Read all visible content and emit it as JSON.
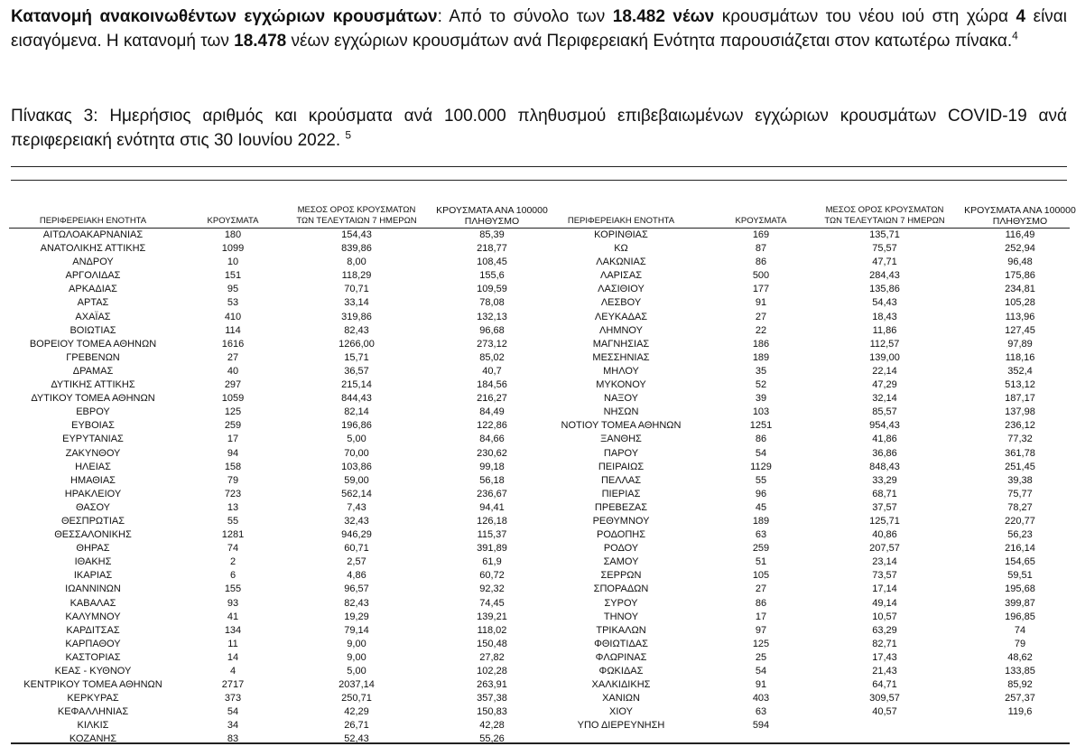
{
  "intro": {
    "segments": [
      {
        "text": "Κατανομή ανακοινωθέντων εγχώριων κρουσμάτων",
        "bold": true
      },
      {
        "text": ": Από το σύνολο των ",
        "bold": false
      },
      {
        "text": "18.482 νέων",
        "bold": true
      },
      {
        "text": " κρουσμάτων του νέου ιού στη χώρα ",
        "bold": false
      },
      {
        "text": "4",
        "bold": true
      },
      {
        "text": " είναι εισαγόμενα.  Η κατανομή των ",
        "bold": false
      },
      {
        "text": "18.478",
        "bold": true
      },
      {
        "text": " νέων εγχώριων κρουσμάτων ανά Περιφερειακή Ενότητα παρουσιάζεται στον κατωτέρω πίνακα.",
        "bold": false
      }
    ],
    "footnote": "4"
  },
  "caption": {
    "text": "Πίνακας 3: Ημερήσιος αριθμός και κρούσματα ανά 100.000 πληθυσμού επιβεβαιωμένων εγχώριων κρουσμάτων COVID-19 ανά περιφερειακή ενότητα στις 30 Ιουνίου 2022. ",
    "footnote": "5"
  },
  "table": {
    "headers": [
      "ΠΕΡΙΦΕΡΕΙΑΚΗ ΕΝΟΤΗΤΑ",
      "ΚΡΟΥΣΜΑΤΑ",
      "ΜΕΣΟΣ ΟΡΟΣ ΚΡΟΥΣΜΑΤΩΝ ΤΩΝ ΤΕΛΕΥΤΑΙΩΝ 7 ΗΜΕΡΩΝ",
      "ΚΡΟΥΣΜΑΤΑ ΑΝΑ 100000 ΠΛΗΘΥΣΜΟ"
    ],
    "headers_split": [
      [
        "ΠΕΡΙΦΕΡΕΙΑΚΗ ΕΝΟΤΗΤΑ"
      ],
      [
        "ΚΡΟΥΣΜΑΤΑ"
      ],
      [
        "ΜΕΣΟΣ ΟΡΟΣ ΚΡΟΥΣΜΑΤΩΝ",
        "ΤΩΝ ΤΕΛΕΥΤΑΙΩΝ 7 ΗΜΕΡΩΝ"
      ],
      [
        "ΚΡΟΥΣΜΑΤΑ ΑΝΑ 100000",
        "ΠΛΗΘΥΣΜΟ"
      ]
    ],
    "left": [
      [
        "ΑΙΤΩΛΟΑΚΑΡΝΑΝΙΑΣ",
        "180",
        "154,43",
        "85,39"
      ],
      [
        "ΑΝΑΤΟΛΙΚΗΣ ΑΤΤΙΚΗΣ",
        "1099",
        "839,86",
        "218,77"
      ],
      [
        "ΑΝΔΡΟΥ",
        "10",
        "8,00",
        "108,45"
      ],
      [
        "ΑΡΓΟΛΙΔΑΣ",
        "151",
        "118,29",
        "155,6"
      ],
      [
        "ΑΡΚΑΔΙΑΣ",
        "95",
        "70,71",
        "109,59"
      ],
      [
        "ΑΡΤΑΣ",
        "53",
        "33,14",
        "78,08"
      ],
      [
        "ΑΧΑΪΑΣ",
        "410",
        "319,86",
        "132,13"
      ],
      [
        "ΒΟΙΩΤΙΑΣ",
        "114",
        "82,43",
        "96,68"
      ],
      [
        "ΒΟΡΕΙΟΥ ΤΟΜΕΑ ΑΘΗΝΩΝ",
        "1616",
        "1266,00",
        "273,12"
      ],
      [
        "ΓΡΕΒΕΝΩΝ",
        "27",
        "15,71",
        "85,02"
      ],
      [
        "ΔΡΑΜΑΣ",
        "40",
        "36,57",
        "40,7"
      ],
      [
        "ΔΥΤΙΚΗΣ ΑΤΤΙΚΗΣ",
        "297",
        "215,14",
        "184,56"
      ],
      [
        "ΔΥΤΙΚΟΥ ΤΟΜΕΑ ΑΘΗΝΩΝ",
        "1059",
        "844,43",
        "216,27"
      ],
      [
        "ΕΒΡΟΥ",
        "125",
        "82,14",
        "84,49"
      ],
      [
        "ΕΥΒΟΙΑΣ",
        "259",
        "196,86",
        "122,86"
      ],
      [
        "ΕΥΡΥΤΑΝΙΑΣ",
        "17",
        "5,00",
        "84,66"
      ],
      [
        "ΖΑΚΥΝΘΟΥ",
        "94",
        "70,00",
        "230,62"
      ],
      [
        "ΗΛΕΙΑΣ",
        "158",
        "103,86",
        "99,18"
      ],
      [
        "ΗΜΑΘΙΑΣ",
        "79",
        "59,00",
        "56,18"
      ],
      [
        "ΗΡΑΚΛΕΙΟΥ",
        "723",
        "562,14",
        "236,67"
      ],
      [
        "ΘΑΣΟΥ",
        "13",
        "7,43",
        "94,41"
      ],
      [
        "ΘΕΣΠΡΩΤΙΑΣ",
        "55",
        "32,43",
        "126,18"
      ],
      [
        "ΘΕΣΣΑΛΟΝΙΚΗΣ",
        "1281",
        "946,29",
        "115,37"
      ],
      [
        "ΘΗΡΑΣ",
        "74",
        "60,71",
        "391,89"
      ],
      [
        "ΙΘΑΚΗΣ",
        "2",
        "2,57",
        "61,9"
      ],
      [
        "ΙΚΑΡΙΑΣ",
        "6",
        "4,86",
        "60,72"
      ],
      [
        "ΙΩΑΝΝΙΝΩΝ",
        "155",
        "96,57",
        "92,32"
      ],
      [
        "ΚΑΒΑΛΑΣ",
        "93",
        "82,43",
        "74,45"
      ],
      [
        "ΚΑΛΥΜΝΟΥ",
        "41",
        "19,29",
        "139,21"
      ],
      [
        "ΚΑΡΔΙΤΣΑΣ",
        "134",
        "79,14",
        "118,02"
      ],
      [
        "ΚΑΡΠΑΘΟΥ",
        "11",
        "9,00",
        "150,48"
      ],
      [
        "ΚΑΣΤΟΡΙΑΣ",
        "14",
        "9,00",
        "27,82"
      ],
      [
        "ΚΕΑΣ - ΚΥΘΝΟΥ",
        "4",
        "5,00",
        "102,28"
      ],
      [
        "ΚΕΝΤΡΙΚΟΥ ΤΟΜΕΑ ΑΘΗΝΩΝ",
        "2717",
        "2037,14",
        "263,91"
      ],
      [
        "ΚΕΡΚΥΡΑΣ",
        "373",
        "250,71",
        "357,38"
      ],
      [
        "ΚΕΦΑΛΛΗΝΙΑΣ",
        "54",
        "42,29",
        "150,83"
      ],
      [
        "ΚΙΛΚΙΣ",
        "34",
        "26,71",
        "42,28"
      ],
      [
        "ΚΟΖΑΝΗΣ",
        "83",
        "52,43",
        "55,26"
      ]
    ],
    "right": [
      [
        "ΚΟΡΙΝΘΙΑΣ",
        "169",
        "135,71",
        "116,49"
      ],
      [
        "ΚΩ",
        "87",
        "75,57",
        "252,94"
      ],
      [
        "ΛΑΚΩΝΙΑΣ",
        "86",
        "47,71",
        "96,48"
      ],
      [
        "ΛΑΡΙΣΑΣ",
        "500",
        "284,43",
        "175,86"
      ],
      [
        "ΛΑΣΙΘΙΟΥ",
        "177",
        "135,86",
        "234,81"
      ],
      [
        "ΛΕΣΒΟΥ",
        "91",
        "54,43",
        "105,28"
      ],
      [
        "ΛΕΥΚΑΔΑΣ",
        "27",
        "18,43",
        "113,96"
      ],
      [
        "ΛΗΜΝΟΥ",
        "22",
        "11,86",
        "127,45"
      ],
      [
        "ΜΑΓΝΗΣΙΑΣ",
        "186",
        "112,57",
        "97,89"
      ],
      [
        "ΜΕΣΣΗΝΙΑΣ",
        "189",
        "139,00",
        "118,16"
      ],
      [
        "ΜΗΛΟΥ",
        "35",
        "22,14",
        "352,4"
      ],
      [
        "ΜΥΚΟΝΟΥ",
        "52",
        "47,29",
        "513,12"
      ],
      [
        "ΝΑΞΟΥ",
        "39",
        "32,14",
        "187,17"
      ],
      [
        "ΝΗΣΩΝ",
        "103",
        "85,57",
        "137,98"
      ],
      [
        "ΝΟΤΙΟΥ ΤΟΜΕΑ ΑΘΗΝΩΝ",
        "1251",
        "954,43",
        "236,12"
      ],
      [
        "ΞΑΝΘΗΣ",
        "86",
        "41,86",
        "77,32"
      ],
      [
        "ΠΑΡΟΥ",
        "54",
        "36,86",
        "361,78"
      ],
      [
        "ΠΕΙΡΑΙΩΣ",
        "1129",
        "848,43",
        "251,45"
      ],
      [
        "ΠΕΛΛΑΣ",
        "55",
        "33,29",
        "39,38"
      ],
      [
        "ΠΙΕΡΙΑΣ",
        "96",
        "68,71",
        "75,77"
      ],
      [
        "ΠΡΕΒΕΖΑΣ",
        "45",
        "37,57",
        "78,27"
      ],
      [
        "ΡΕΘΥΜΝΟΥ",
        "189",
        "125,71",
        "220,77"
      ],
      [
        "ΡΟΔΟΠΗΣ",
        "63",
        "40,86",
        "56,23"
      ],
      [
        "ΡΟΔΟΥ",
        "259",
        "207,57",
        "216,14"
      ],
      [
        "ΣΑΜΟΥ",
        "51",
        "23,14",
        "154,65"
      ],
      [
        "ΣΕΡΡΩΝ",
        "105",
        "73,57",
        "59,51"
      ],
      [
        "ΣΠΟΡΑΔΩΝ",
        "27",
        "17,14",
        "195,68"
      ],
      [
        "ΣΥΡΟΥ",
        "86",
        "49,14",
        "399,87"
      ],
      [
        "ΤΗΝΟΥ",
        "17",
        "10,57",
        "196,85"
      ],
      [
        "ΤΡΙΚΑΛΩΝ",
        "97",
        "63,29",
        "74"
      ],
      [
        "ΦΘΙΩΤΙΔΑΣ",
        "125",
        "82,71",
        "79"
      ],
      [
        "ΦΛΩΡΙΝΑΣ",
        "25",
        "17,43",
        "48,62"
      ],
      [
        "ΦΩΚΙΔΑΣ",
        "54",
        "21,43",
        "133,85"
      ],
      [
        "ΧΑΛΚΙΔΙΚΗΣ",
        "91",
        "64,71",
        "85,92"
      ],
      [
        "ΧΑΝΙΩΝ",
        "403",
        "309,57",
        "257,37"
      ],
      [
        "ΧΙΟΥ",
        "63",
        "40,57",
        "119,6"
      ],
      [
        "ΥΠΟ ΔΙΕΡΕΥΝΗΣΗ",
        "594",
        "",
        ""
      ]
    ]
  }
}
